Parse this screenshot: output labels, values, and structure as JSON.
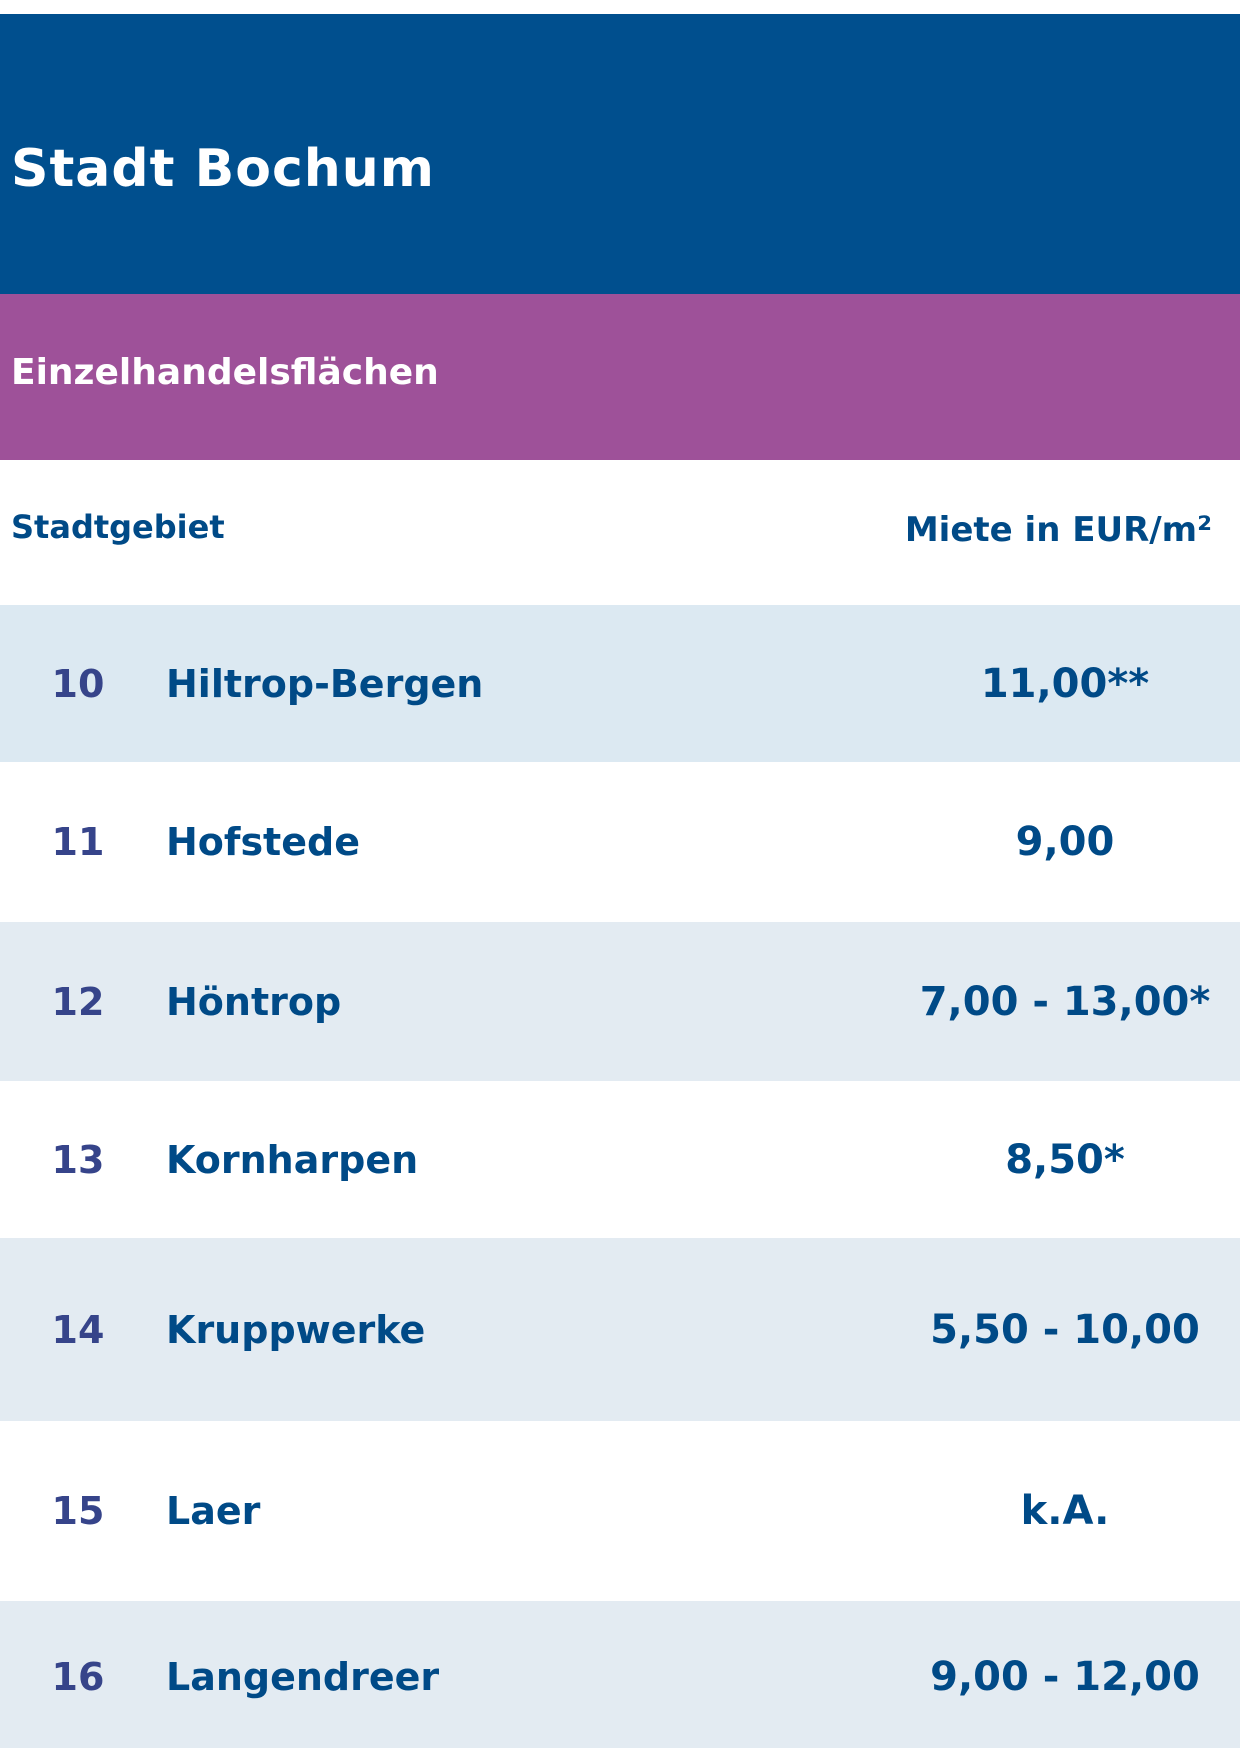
{
  "colors": {
    "header_bg": "#004f8e",
    "subheader_bg": "#9e5199",
    "text_dark": "#004a87",
    "number_text": "#36448a",
    "row_shade_1": "#dce9f2",
    "row_shade": "#e3ebf2",
    "row_white": "#ffffff"
  },
  "header": {
    "title": "Stadt Bochum"
  },
  "subheader": {
    "title": "Einzelhandelsflächen"
  },
  "table": {
    "col_left": "Stadtgebiet",
    "col_right": "Miete in EUR/m²",
    "rows": [
      {
        "num": "10",
        "name": "Hiltrop-Bergen",
        "rent": "11,00**"
      },
      {
        "num": "11",
        "name": "Hofstede",
        "rent": "9,00"
      },
      {
        "num": "12",
        "name": "Höntrop",
        "rent": "7,00 - 13,00*"
      },
      {
        "num": "13",
        "name": "Kornharpen",
        "rent": "8,50*"
      },
      {
        "num": "14",
        "name": "Kruppwerke",
        "rent": "5,50 - 10,00"
      },
      {
        "num": "15",
        "name": "Laer",
        "rent": "k.A."
      },
      {
        "num": "16",
        "name": "Langendreer",
        "rent": "9,00 - 12,00"
      }
    ]
  }
}
